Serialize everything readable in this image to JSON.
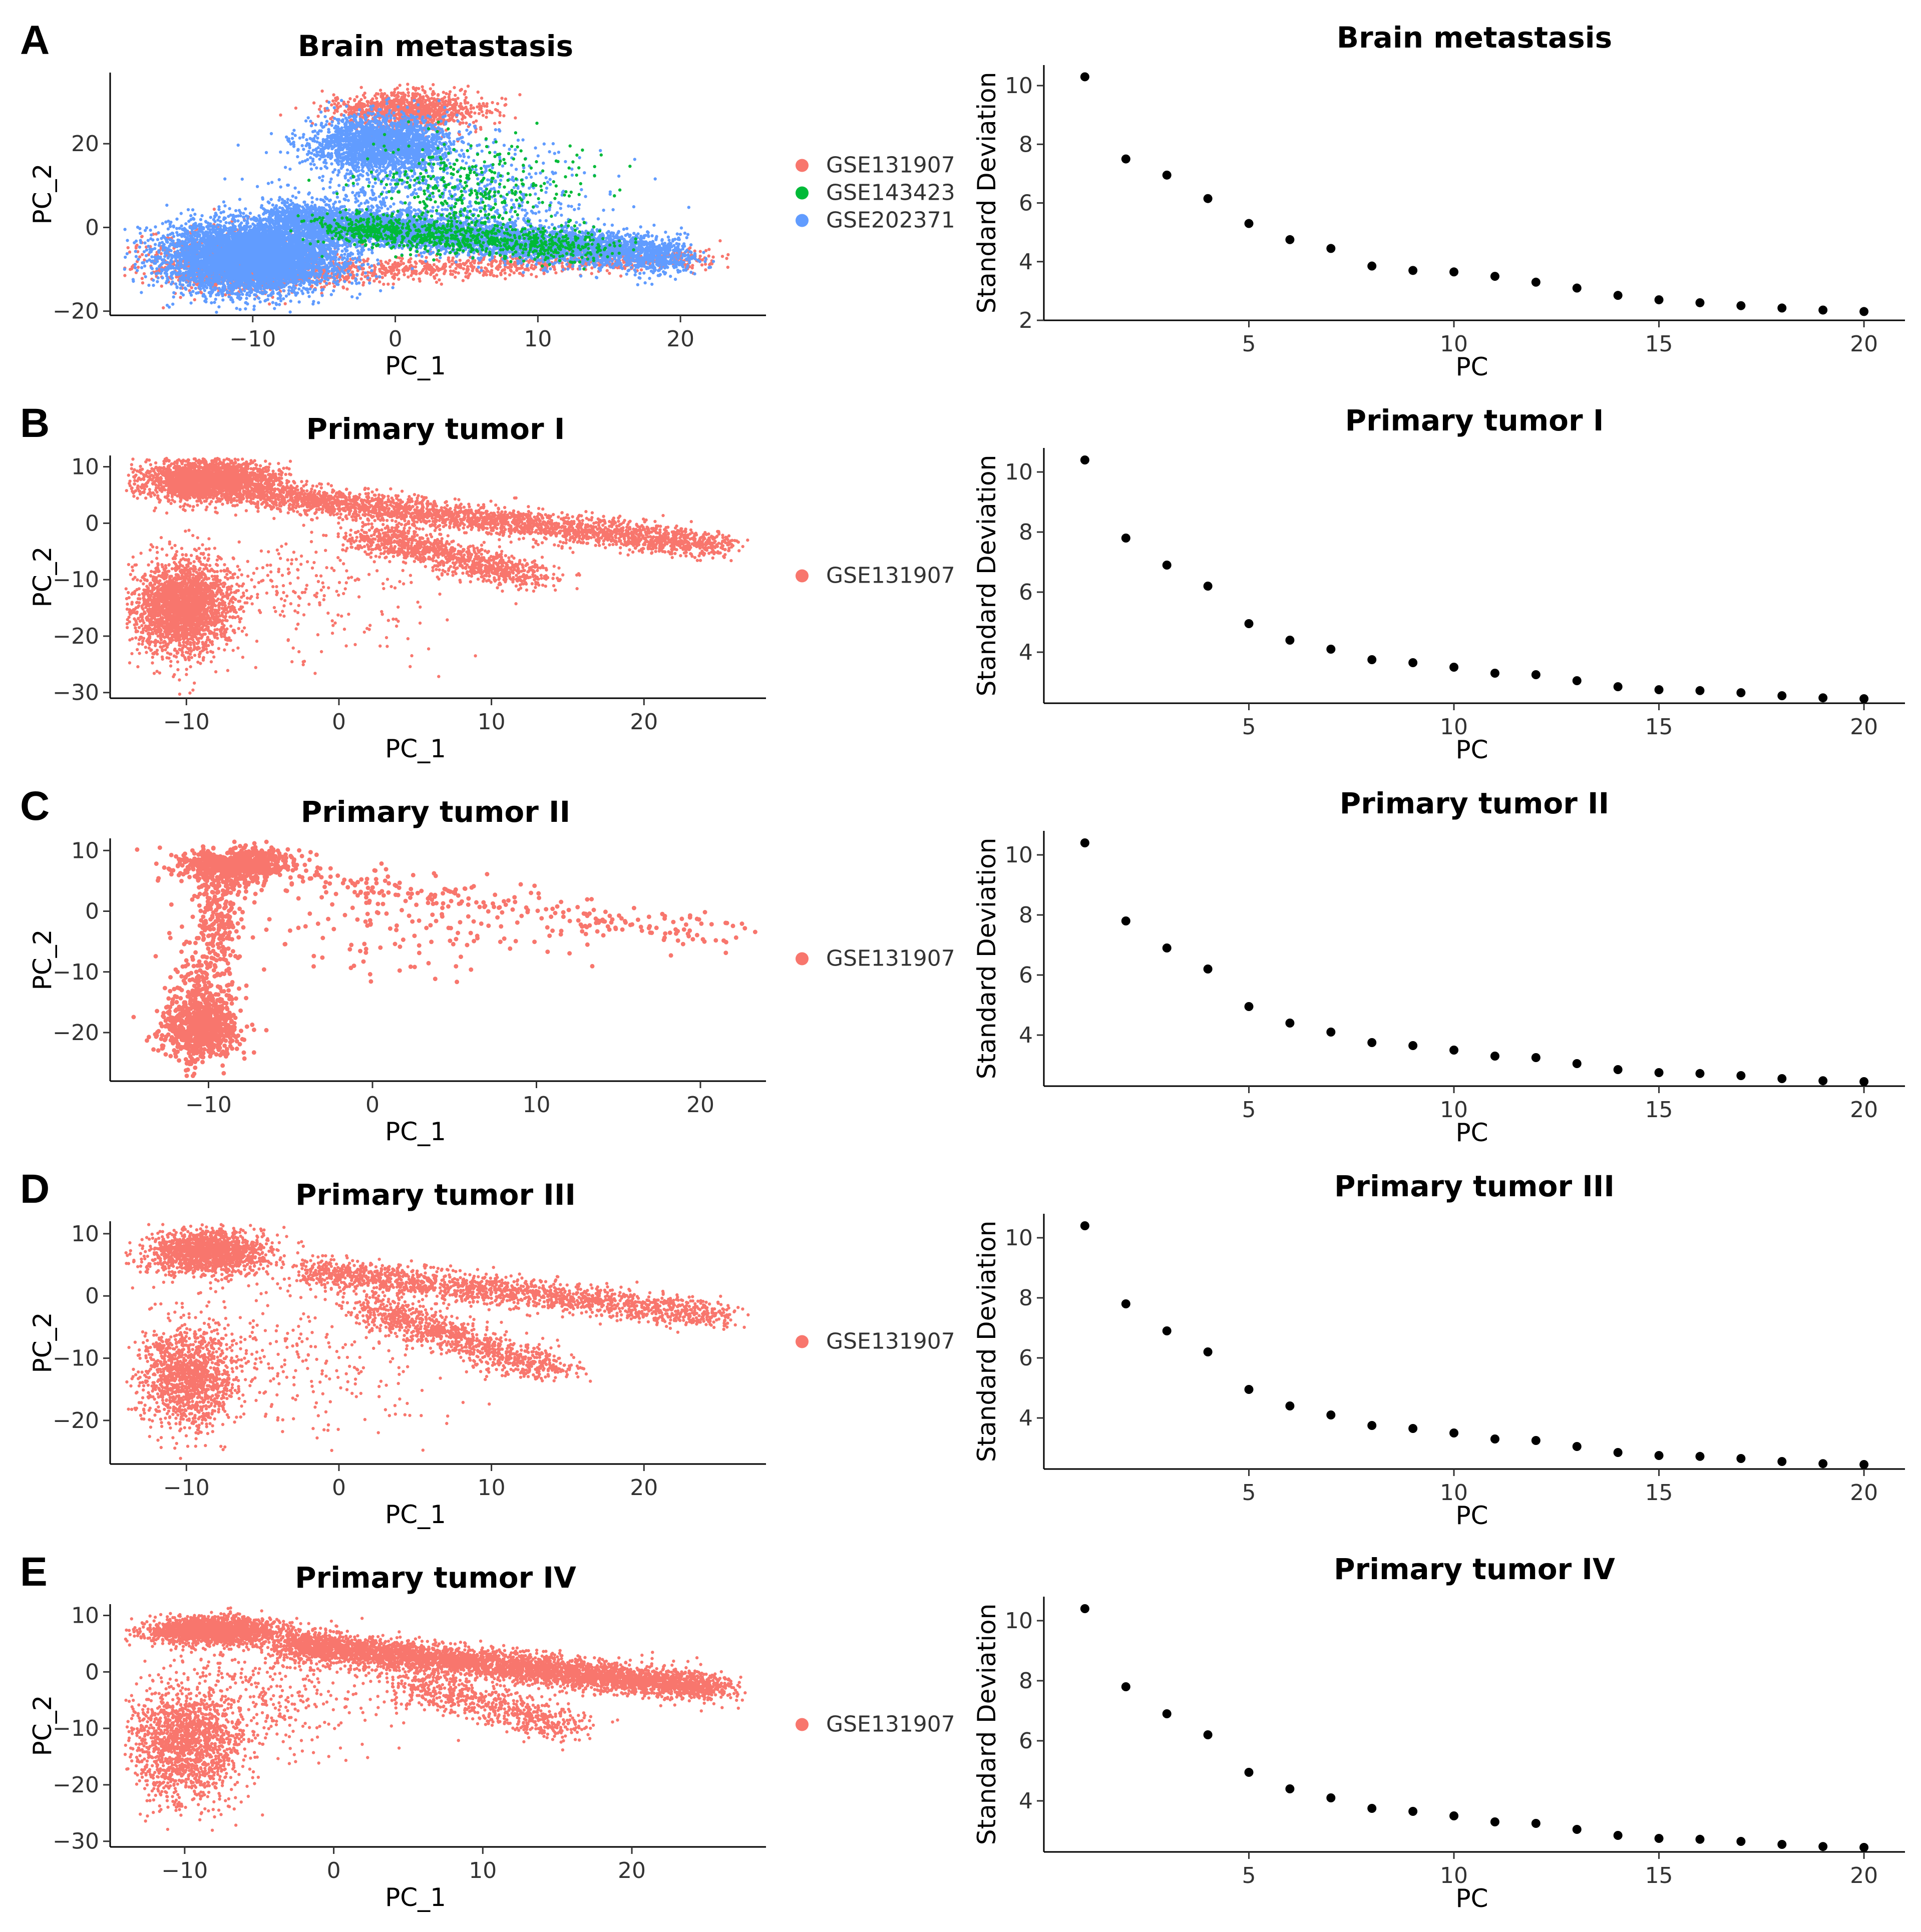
{
  "figure": {
    "panels": [
      {
        "letter": "A",
        "title": "Brain metastasis"
      },
      {
        "letter": "B",
        "title": "Primary tumor I"
      },
      {
        "letter": "C",
        "title": "Primary tumor II"
      },
      {
        "letter": "D",
        "title": "Primary tumor III"
      },
      {
        "letter": "E",
        "title": "Primary tumor IV"
      }
    ]
  },
  "chart_data": [
    {
      "type": "scatter",
      "panel": "A",
      "title": "Brain metastasis",
      "xlabel": "PC_1",
      "ylabel": "PC_2",
      "xlim": [
        -20,
        26
      ],
      "ylim": [
        -21,
        37
      ],
      "xticks": [
        -10,
        0,
        10,
        20
      ],
      "yticks": [
        -20,
        0,
        20
      ],
      "legend": [
        "GSE131907",
        "GSE143423",
        "GSE202371"
      ],
      "legend_colors": [
        "#F8766D",
        "#00BA38",
        "#619CFF"
      ],
      "draw_order": [
        0,
        2,
        1
      ],
      "n_points": 18000,
      "clusters": [
        {
          "series": 2,
          "weight": 0.32,
          "kind": "blob",
          "cx": -10,
          "cy": -7,
          "sx": 3.0,
          "sy": 4.2
        },
        {
          "series": 2,
          "weight": 0.26,
          "kind": "line",
          "x0": -8,
          "y0": 2,
          "x1": 20,
          "y1": -7,
          "sx": 1.0,
          "sy": 2.2
        },
        {
          "series": 2,
          "weight": 0.12,
          "kind": "blob",
          "cx": -1,
          "cy": 20,
          "sx": 2.4,
          "sy": 3.2
        },
        {
          "series": 2,
          "weight": 0.04,
          "kind": "blob",
          "cx": 3,
          "cy": 8,
          "sx": 5,
          "sy": 6
        },
        {
          "series": 0,
          "weight": 0.06,
          "kind": "blob",
          "cx": 1,
          "cy": 28,
          "sx": 2.6,
          "sy": 2.2
        },
        {
          "series": 0,
          "weight": 0.07,
          "kind": "line",
          "x0": -14,
          "y0": -12,
          "x1": 22,
          "y1": -7,
          "sx": 1.2,
          "sy": 1.4
        },
        {
          "series": 0,
          "weight": 0.06,
          "kind": "blob",
          "cx": -11,
          "cy": -8,
          "sx": 3.4,
          "sy": 3.4
        },
        {
          "series": 1,
          "weight": 0.05,
          "kind": "line",
          "x0": -4,
          "y0": 0,
          "x1": 14,
          "y1": -5,
          "sx": 1.5,
          "sy": 2.0
        },
        {
          "series": 1,
          "weight": 0.02,
          "kind": "blob",
          "cx": 5,
          "cy": 10,
          "sx": 4,
          "sy": 6
        }
      ]
    },
    {
      "type": "scatter",
      "panel": "B",
      "title": "Primary tumor I",
      "xlabel": "PC_1",
      "ylabel": "PC_2",
      "xlim": [
        -15,
        28
      ],
      "ylim": [
        -31,
        12
      ],
      "xticks": [
        -10,
        0,
        10,
        20
      ],
      "yticks": [
        -30,
        -20,
        -10,
        0,
        10
      ],
      "legend": [
        "GSE131907"
      ],
      "legend_colors": [
        "#F8766D"
      ],
      "n_points": 9000,
      "clusters": [
        {
          "series": 0,
          "weight": 0.27,
          "kind": "blob",
          "cx": -8.5,
          "cy": 7.5,
          "sx": 2.2,
          "sy": 1.8
        },
        {
          "series": 0,
          "weight": 0.28,
          "kind": "blob",
          "cx": -10.2,
          "cy": -15,
          "sx": 1.6,
          "sy": 4.0
        },
        {
          "series": 0,
          "weight": 0.3,
          "kind": "line",
          "x0": -5,
          "y0": 5,
          "x1": 25,
          "y1": -4,
          "sx": 1.0,
          "sy": 1.2
        },
        {
          "series": 0,
          "weight": 0.12,
          "kind": "line",
          "x0": 2,
          "y0": -2,
          "x1": 13,
          "y1": -10,
          "sx": 1.2,
          "sy": 1.2
        },
        {
          "series": 0,
          "weight": 0.03,
          "kind": "blob",
          "cx": -3,
          "cy": -12,
          "sx": 5,
          "sy": 6
        }
      ]
    },
    {
      "type": "scatter",
      "panel": "C",
      "title": "Primary tumor II",
      "xlabel": "PC_1",
      "ylabel": "PC_2",
      "xlim": [
        -16,
        24
      ],
      "ylim": [
        -28,
        12
      ],
      "xticks": [
        -10,
        0,
        10,
        20
      ],
      "yticks": [
        -20,
        -10,
        0,
        10
      ],
      "legend": [
        "GSE131907"
      ],
      "legend_colors": [
        "#F8766D"
      ],
      "n_points": 2200,
      "clusters": [
        {
          "series": 0,
          "weight": 0.33,
          "kind": "blob",
          "cx": -8.5,
          "cy": 7.5,
          "sx": 1.8,
          "sy": 1.5
        },
        {
          "series": 0,
          "weight": 0.36,
          "kind": "blob",
          "cx": -10.5,
          "cy": -19,
          "sx": 1.2,
          "sy": 2.8
        },
        {
          "series": 0,
          "weight": 0.15,
          "kind": "line",
          "x0": -9,
          "y0": 5,
          "x1": -10.5,
          "y1": -15,
          "sx": 0.9,
          "sy": 1.5
        },
        {
          "series": 0,
          "weight": 0.1,
          "kind": "line",
          "x0": -4,
          "y0": 5,
          "x1": 22,
          "y1": -4,
          "sx": 1.2,
          "sy": 1.4
        },
        {
          "series": 0,
          "weight": 0.06,
          "kind": "blob",
          "cx": 3,
          "cy": -3,
          "sx": 5,
          "sy": 4
        }
      ]
    },
    {
      "type": "scatter",
      "panel": "D",
      "title": "Primary tumor III",
      "xlabel": "PC_1",
      "ylabel": "PC_2",
      "xlim": [
        -15,
        28
      ],
      "ylim": [
        -27,
        12
      ],
      "xticks": [
        -10,
        0,
        10,
        20
      ],
      "yticks": [
        -20,
        -10,
        0,
        10
      ],
      "legend": [
        "GSE131907"
      ],
      "legend_colors": [
        "#F8766D"
      ],
      "n_points": 6000,
      "clusters": [
        {
          "series": 0,
          "weight": 0.26,
          "kind": "blob",
          "cx": -8.5,
          "cy": 7.0,
          "sx": 2.0,
          "sy": 1.8
        },
        {
          "series": 0,
          "weight": 0.22,
          "kind": "blob",
          "cx": -10,
          "cy": -13,
          "sx": 1.6,
          "sy": 4.0
        },
        {
          "series": 0,
          "weight": 0.3,
          "kind": "line",
          "x0": -2,
          "y0": 4,
          "x1": 25,
          "y1": -3,
          "sx": 1.0,
          "sy": 1.2
        },
        {
          "series": 0,
          "weight": 0.17,
          "kind": "line",
          "x0": 2,
          "y0": -2,
          "x1": 14,
          "y1": -12,
          "sx": 1.2,
          "sy": 1.3
        },
        {
          "series": 0,
          "weight": 0.05,
          "kind": "blob",
          "cx": -3,
          "cy": -10,
          "sx": 5,
          "sy": 6
        }
      ]
    },
    {
      "type": "scatter",
      "panel": "E",
      "title": "Primary tumor IV",
      "xlabel": "PC_1",
      "ylabel": "PC_2",
      "xlim": [
        -15,
        29
      ],
      "ylim": [
        -31,
        12
      ],
      "xticks": [
        -10,
        0,
        10,
        20
      ],
      "yticks": [
        -30,
        -20,
        -10,
        0,
        10
      ],
      "legend": [
        "GSE131907"
      ],
      "legend_colors": [
        "#F8766D"
      ],
      "n_points": 9000,
      "clusters": [
        {
          "series": 0,
          "weight": 0.2,
          "kind": "blob",
          "cx": -8,
          "cy": 7.3,
          "sx": 2.2,
          "sy": 1.2
        },
        {
          "series": 0,
          "weight": 0.17,
          "kind": "blob",
          "cx": -10,
          "cy": -13,
          "sx": 1.8,
          "sy": 5.0
        },
        {
          "series": 0,
          "weight": 0.5,
          "kind": "line",
          "x0": -3,
          "y0": 5,
          "x1": 26,
          "y1": -3,
          "sx": 1.0,
          "sy": 1.3
        },
        {
          "series": 0,
          "weight": 0.08,
          "kind": "line",
          "x0": 5,
          "y0": -2,
          "x1": 16,
          "y1": -10,
          "sx": 1.5,
          "sy": 1.5
        },
        {
          "series": 0,
          "weight": 0.05,
          "kind": "blob",
          "cx": -5,
          "cy": -5,
          "sx": 4,
          "sy": 6
        }
      ]
    },
    {
      "type": "scatter",
      "panel": "A",
      "title": "Brain metastasis",
      "xlabel": "PC",
      "ylabel": "Standard Deviation",
      "x": [
        1,
        2,
        3,
        4,
        5,
        6,
        7,
        8,
        9,
        10,
        11,
        12,
        13,
        14,
        15,
        16,
        17,
        18,
        19,
        20
      ],
      "y": [
        10.3,
        7.5,
        6.95,
        6.15,
        5.3,
        4.75,
        4.45,
        3.85,
        3.7,
        3.65,
        3.5,
        3.3,
        3.1,
        2.85,
        2.7,
        2.6,
        2.5,
        2.42,
        2.35,
        2.3
      ],
      "xlim": [
        0,
        21
      ],
      "ylim": [
        2,
        10.7
      ],
      "xticks": [
        5,
        10,
        15,
        20
      ],
      "yticks": [
        2,
        4,
        6,
        8,
        10
      ]
    },
    {
      "type": "scatter",
      "panel": "B",
      "title": "Primary tumor I",
      "xlabel": "PC",
      "ylabel": "Standard Deviation",
      "x": [
        1,
        2,
        3,
        4,
        5,
        6,
        7,
        8,
        9,
        10,
        11,
        12,
        13,
        14,
        15,
        16,
        17,
        18,
        19,
        20
      ],
      "y": [
        10.4,
        7.8,
        6.9,
        6.2,
        4.95,
        4.4,
        4.1,
        3.75,
        3.65,
        3.5,
        3.3,
        3.25,
        3.05,
        2.85,
        2.75,
        2.72,
        2.65,
        2.55,
        2.48,
        2.45
      ],
      "xlim": [
        0,
        21
      ],
      "ylim": [
        2.3,
        10.8
      ],
      "xticks": [
        5,
        10,
        15,
        20
      ],
      "yticks": [
        4,
        6,
        8,
        10
      ]
    },
    {
      "type": "scatter",
      "panel": "C",
      "title": "Primary tumor II",
      "xlabel": "PC",
      "ylabel": "Standard Deviation",
      "x": [
        1,
        2,
        3,
        4,
        5,
        6,
        7,
        8,
        9,
        10,
        11,
        12,
        13,
        14,
        15,
        16,
        17,
        18,
        19,
        20
      ],
      "y": [
        10.4,
        7.8,
        6.9,
        6.2,
        4.95,
        4.4,
        4.1,
        3.75,
        3.65,
        3.5,
        3.3,
        3.25,
        3.05,
        2.85,
        2.75,
        2.72,
        2.65,
        2.55,
        2.48,
        2.45
      ],
      "xlim": [
        0,
        21
      ],
      "ylim": [
        2.3,
        10.8
      ],
      "xticks": [
        5,
        10,
        15,
        20
      ],
      "yticks": [
        4,
        6,
        8,
        10
      ]
    },
    {
      "type": "scatter",
      "panel": "D",
      "title": "Primary tumor III",
      "xlabel": "PC",
      "ylabel": "Standard Deviation",
      "x": [
        1,
        2,
        3,
        4,
        5,
        6,
        7,
        8,
        9,
        10,
        11,
        12,
        13,
        14,
        15,
        16,
        17,
        18,
        19,
        20
      ],
      "y": [
        10.4,
        7.8,
        6.9,
        6.2,
        4.95,
        4.4,
        4.1,
        3.75,
        3.65,
        3.5,
        3.3,
        3.25,
        3.05,
        2.85,
        2.75,
        2.72,
        2.65,
        2.55,
        2.48,
        2.45
      ],
      "xlim": [
        0,
        21
      ],
      "ylim": [
        2.3,
        10.8
      ],
      "xticks": [
        5,
        10,
        15,
        20
      ],
      "yticks": [
        4,
        6,
        8,
        10
      ]
    },
    {
      "type": "scatter",
      "panel": "E",
      "title": "Primary tumor IV",
      "xlabel": "PC",
      "ylabel": "Standard Deviation",
      "x": [
        1,
        2,
        3,
        4,
        5,
        6,
        7,
        8,
        9,
        10,
        11,
        12,
        13,
        14,
        15,
        16,
        17,
        18,
        19,
        20
      ],
      "y": [
        10.4,
        7.8,
        6.9,
        6.2,
        4.95,
        4.4,
        4.1,
        3.75,
        3.65,
        3.5,
        3.3,
        3.25,
        3.05,
        2.85,
        2.75,
        2.72,
        2.65,
        2.55,
        2.48,
        2.45
      ],
      "xlim": [
        0,
        21
      ],
      "ylim": [
        2.3,
        10.8
      ],
      "xticks": [
        5,
        10,
        15,
        20
      ],
      "yticks": [
        4,
        6,
        8,
        10
      ]
    }
  ]
}
